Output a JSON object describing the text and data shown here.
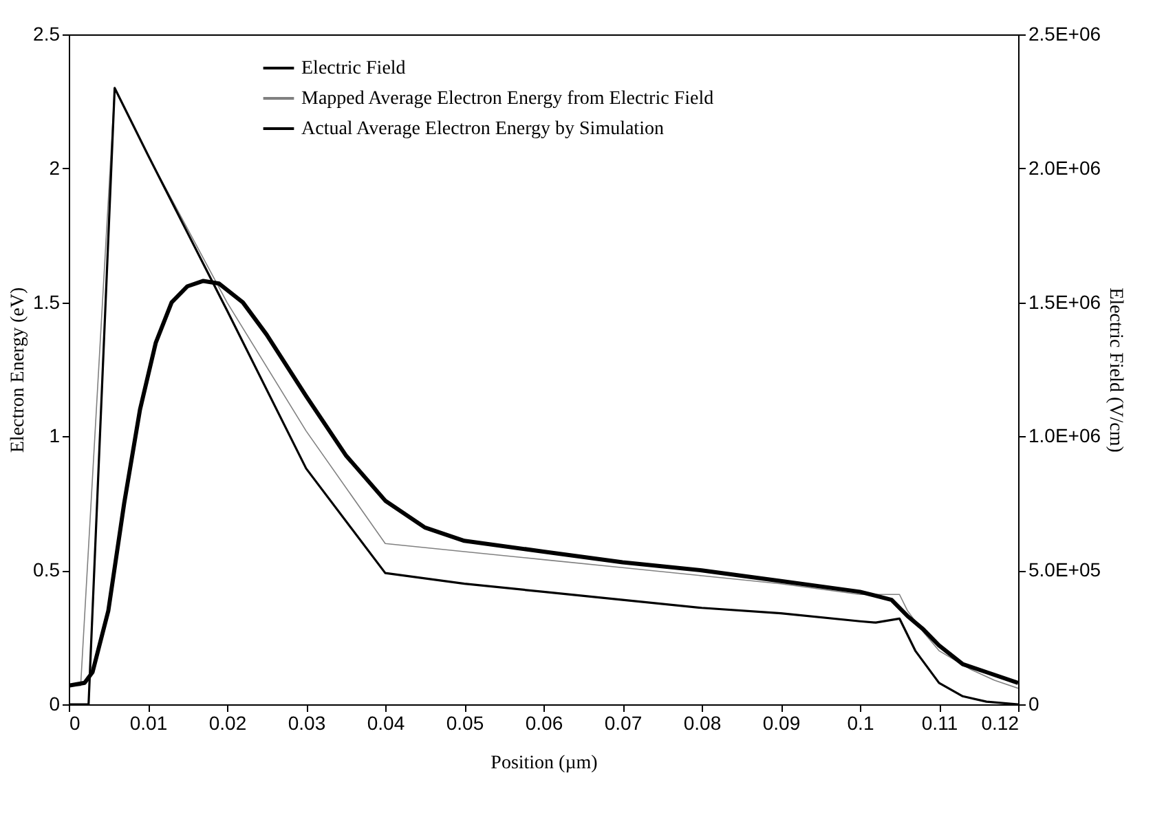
{
  "chart_data": {
    "type": "line",
    "xlabel": "Position (µm)",
    "ylabel": "Electron Energy (eV)",
    "y2label": "Electric Field (V/cm)",
    "xlim": [
      0,
      0.12
    ],
    "xticks": [
      0,
      0.01,
      0.02,
      0.03,
      0.04,
      0.05,
      0.06,
      0.07,
      0.08,
      0.09,
      0.1,
      0.11,
      0.12
    ],
    "ylim": [
      0,
      2.5
    ],
    "yticks": [
      0,
      0.5,
      1,
      1.5,
      2,
      2.5
    ],
    "y2lim": [
      0,
      2500000
    ],
    "y2ticks": [
      0,
      {
        "value": 500000,
        "label": "5.0E+05"
      },
      {
        "value": 1000000,
        "label": "1.0E+06"
      },
      {
        "value": 1500000,
        "label": "1.5E+06"
      },
      {
        "value": 2000000,
        "label": "2.0E+06"
      },
      {
        "value": 2500000,
        "label": "2.5E+06"
      }
    ],
    "grid": false,
    "legend": "top left",
    "marker": "none",
    "line_style": "solid",
    "series": [
      {
        "name": "Electric Field",
        "color": "#000000",
        "axis": "y2",
        "x": [
          0,
          0.0025,
          0.0058,
          0.01,
          0.02,
          0.03,
          0.04,
          0.05,
          0.06,
          0.07,
          0.08,
          0.09,
          0.1,
          0.102,
          0.105,
          0.107,
          0.11,
          0.113,
          0.116,
          0.12
        ],
        "values": [
          0,
          0,
          2300000,
          2050000,
          1470000,
          880000,
          490000,
          450000,
          420000,
          390000,
          360000,
          340000,
          310000,
          305000,
          320000,
          200000,
          80000,
          30000,
          10000,
          0
        ]
      },
      {
        "name": "Mapped Average Electron Energy from Electric Field",
        "color": "#808080",
        "x": [
          0,
          0.0015,
          0.0058,
          0.01,
          0.02,
          0.03,
          0.04,
          0.05,
          0.06,
          0.07,
          0.08,
          0.09,
          0.1,
          0.105,
          0.106,
          0.108,
          0.11,
          0.114,
          0.117,
          0.12
        ],
        "values": [
          0.07,
          0.07,
          2.3,
          2.05,
          1.5,
          1.02,
          0.6,
          0.57,
          0.54,
          0.51,
          0.48,
          0.45,
          0.41,
          0.41,
          0.35,
          0.27,
          0.2,
          0.13,
          0.09,
          0.06
        ]
      },
      {
        "name": "Actual Average Electron Energy by Simulation",
        "color": "#000000",
        "x": [
          0,
          0.002,
          0.003,
          0.005,
          0.007,
          0.009,
          0.011,
          0.013,
          0.015,
          0.017,
          0.019,
          0.022,
          0.025,
          0.03,
          0.035,
          0.04,
          0.045,
          0.05,
          0.06,
          0.07,
          0.08,
          0.09,
          0.1,
          0.104,
          0.106,
          0.108,
          0.11,
          0.113,
          0.116,
          0.12
        ],
        "values": [
          0.07,
          0.08,
          0.12,
          0.35,
          0.75,
          1.1,
          1.35,
          1.5,
          1.56,
          1.58,
          1.57,
          1.5,
          1.38,
          1.15,
          0.93,
          0.76,
          0.66,
          0.61,
          0.57,
          0.53,
          0.5,
          0.46,
          0.42,
          0.39,
          0.33,
          0.28,
          0.22,
          0.15,
          0.12,
          0.08
        ]
      }
    ]
  }
}
